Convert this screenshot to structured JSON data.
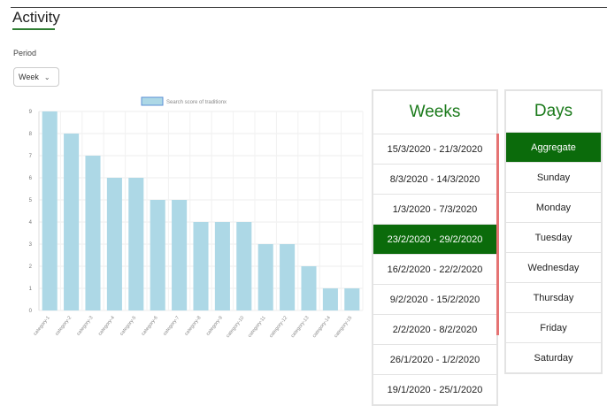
{
  "header": {
    "title": "Activity"
  },
  "period": {
    "label": "Period",
    "value": "Week"
  },
  "chart_data": {
    "type": "bar",
    "legend": {
      "label": "Search score of traditionx"
    },
    "categories": [
      "category-1",
      "category-2",
      "category-3",
      "category-4",
      "category-5",
      "category-6",
      "category-7",
      "category-8",
      "category-9",
      "category-10",
      "category-11",
      "category-12",
      "category-13",
      "category-14",
      "category-15"
    ],
    "values": [
      9,
      8,
      7,
      6,
      6,
      5,
      5,
      4,
      4,
      4,
      3,
      3,
      2,
      1,
      1
    ],
    "ylim": [
      0,
      9
    ],
    "yticks": [
      "0",
      "1",
      "2",
      "3",
      "4",
      "5",
      "6",
      "7",
      "8",
      "9"
    ],
    "grid": true,
    "bar_color": "#add8e6"
  },
  "weeks": {
    "title": "Weeks",
    "items": [
      "15/3/2020 - 21/3/2020",
      "8/3/2020 - 14/3/2020",
      "1/3/2020 - 7/3/2020",
      "23/2/2020 - 29/2/2020",
      "16/2/2020 - 22/2/2020",
      "9/2/2020 - 15/2/2020",
      "2/2/2020 - 8/2/2020",
      "26/1/2020 - 1/2/2020",
      "19/1/2020 - 25/1/2020"
    ],
    "selected_index": 3
  },
  "days": {
    "title": "Days",
    "items": [
      "Aggregate",
      "Sunday",
      "Monday",
      "Tuesday",
      "Wednesday",
      "Thursday",
      "Friday",
      "Saturday"
    ],
    "selected_index": 0
  },
  "colors": {
    "accent_green": "#0b6b0b",
    "heading_green": "#1b7a1b",
    "scrollbar": "#e57373"
  }
}
